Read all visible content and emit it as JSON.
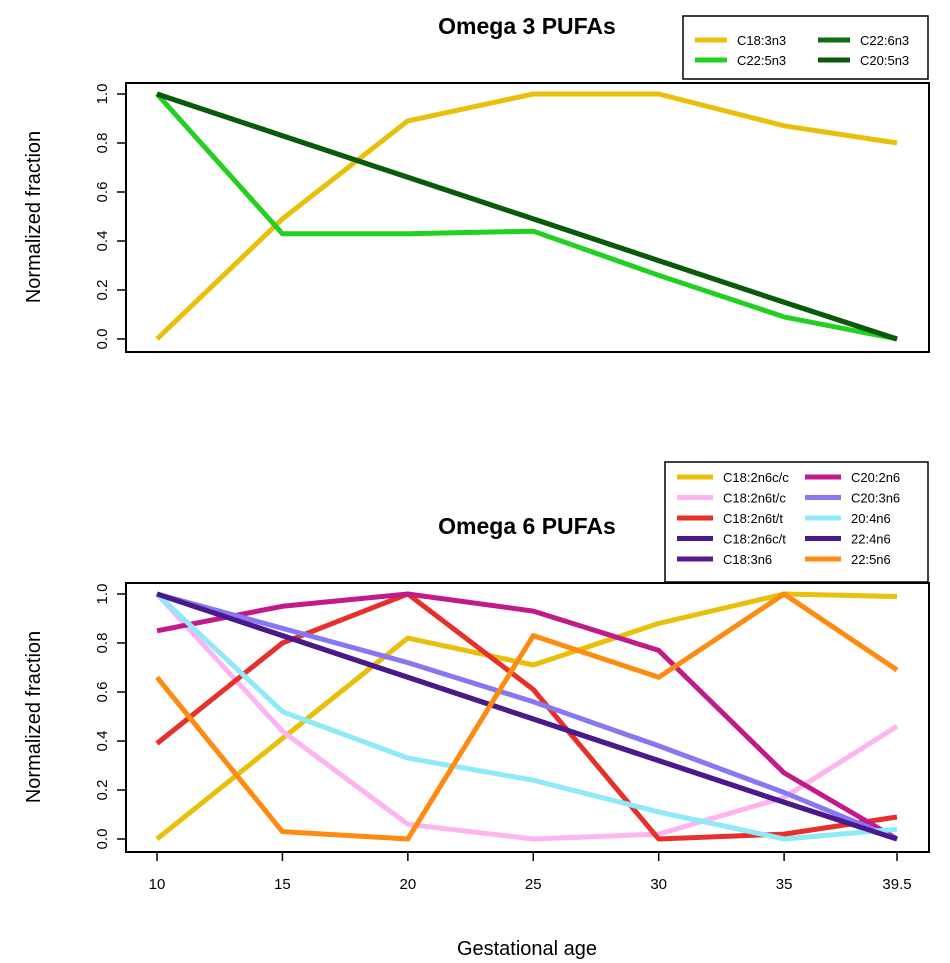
{
  "chart_data": [
    {
      "type": "line",
      "title": "Omega 3 PUFAs",
      "xlabel": "",
      "ylabel": "Normalized fraction",
      "x": [
        10,
        15,
        20,
        25,
        30,
        35,
        39.5
      ],
      "xlim": [
        10,
        39.5
      ],
      "ylim": [
        0,
        1
      ],
      "yticks": [
        "0.0",
        "0.2",
        "0.4",
        "0.6",
        "0.8",
        "1.0"
      ],
      "xticks_visible": false,
      "legend_position": "top-right",
      "legend_columns": 2,
      "series": [
        {
          "name": "C18:3n3",
          "color": "#e8c00a",
          "values": [
            0.0,
            0.49,
            0.89,
            1.0,
            1.0,
            0.87,
            0.8
          ]
        },
        {
          "name": "C22:5n3",
          "color": "#22d022",
          "values": [
            1.0,
            0.43,
            0.43,
            0.44,
            0.26,
            0.09,
            0.0
          ]
        },
        {
          "name": "C22:6n3",
          "color": "#0f6b0f",
          "values": [
            1.0,
            0.83,
            0.66,
            0.49,
            0.32,
            0.15,
            0.0
          ]
        },
        {
          "name": "C20:5n3",
          "color": "#0b5a0b",
          "values": [
            1.0,
            0.83,
            0.66,
            0.49,
            0.32,
            0.15,
            0.0
          ]
        }
      ]
    },
    {
      "type": "line",
      "title": "Omega 6 PUFAs",
      "xlabel": "Gestational age",
      "ylabel": "Normalized fraction",
      "x": [
        10,
        15,
        20,
        25,
        30,
        35,
        39.5
      ],
      "xticks": [
        "10",
        "15",
        "20",
        "25",
        "30",
        "35",
        "39.5"
      ],
      "xlim": [
        10,
        39.5
      ],
      "ylim": [
        0,
        1
      ],
      "yticks": [
        "0.0",
        "0.2",
        "0.4",
        "0.6",
        "0.8",
        "1.0"
      ],
      "legend_position": "top-right",
      "legend_columns": 2,
      "series": [
        {
          "name": "C18:2n6c/c",
          "color": "#e8c00a",
          "values": [
            0.0,
            0.41,
            0.82,
            0.71,
            0.88,
            1.0,
            0.99
          ]
        },
        {
          "name": "C18:2n6t/c",
          "color": "#ffb3f0",
          "values": [
            1.0,
            0.44,
            0.06,
            0.0,
            0.02,
            0.17,
            0.46
          ]
        },
        {
          "name": "C18:2n6t/t",
          "color": "#e8302a",
          "values": [
            0.39,
            0.8,
            1.0,
            0.61,
            0.0,
            0.02,
            0.09
          ]
        },
        {
          "name": "C18:2n6c/t",
          "color": "#4a1a8c",
          "values": [
            1.0,
            0.83,
            0.66,
            0.49,
            0.32,
            0.15,
            0.0
          ]
        },
        {
          "name": "C18:3n6",
          "color": "#5a1a8c",
          "values": [
            1.0,
            0.83,
            0.66,
            0.49,
            0.32,
            0.15,
            0.0
          ]
        },
        {
          "name": "C20:2n6",
          "color": "#c21a8a",
          "values": [
            0.85,
            0.95,
            1.0,
            0.93,
            0.77,
            0.27,
            0.0
          ]
        },
        {
          "name": "C20:3n6",
          "color": "#8877f2",
          "values": [
            1.0,
            0.86,
            0.72,
            0.56,
            0.38,
            0.19,
            0.0
          ]
        },
        {
          "name": "20:4n6",
          "color": "#8ee9f8",
          "values": [
            1.0,
            0.52,
            0.33,
            0.24,
            0.11,
            0.0,
            0.04
          ]
        },
        {
          "name": "22:4n6",
          "color": "#4a1a8c",
          "values": [
            1.0,
            0.83,
            0.66,
            0.49,
            0.32,
            0.15,
            0.0
          ]
        },
        {
          "name": "22:5n6",
          "color": "#ff8a10",
          "values": [
            0.66,
            0.03,
            0.0,
            0.83,
            0.66,
            1.0,
            0.69
          ]
        }
      ]
    }
  ]
}
